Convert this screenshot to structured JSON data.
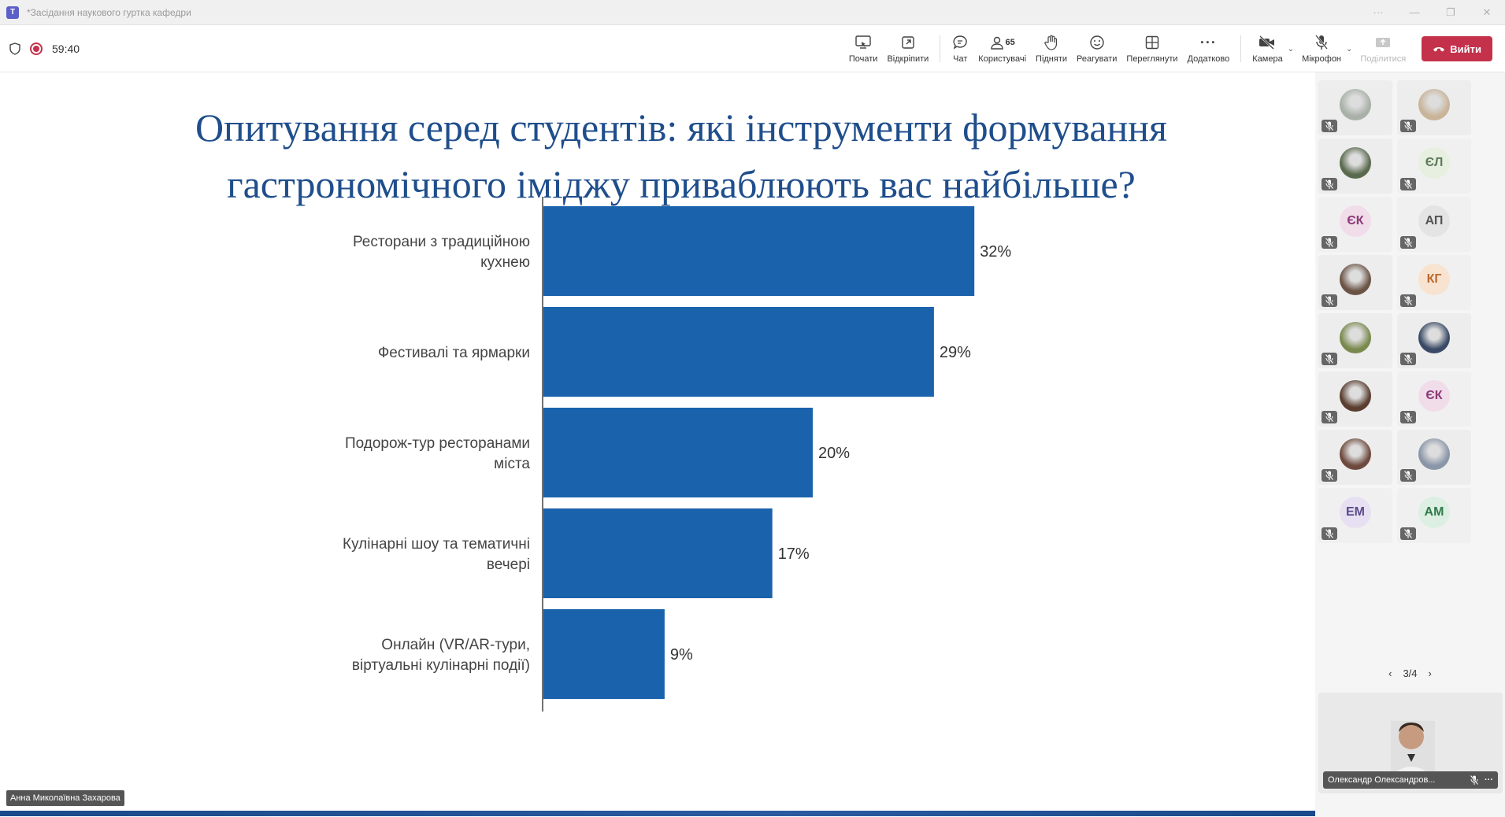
{
  "window": {
    "title": "*Засідання наукового гуртка кафедри",
    "app_icon": "teams-icon"
  },
  "toolbar": {
    "timer": "59:40",
    "buttons": {
      "share_label": "Почати",
      "popout_label": "Відкріпити",
      "chat_label": "Чат",
      "people_label": "Користувачі",
      "people_count": "65",
      "raise_label": "Підняти",
      "react_label": "Реагувати",
      "view_label": "Переглянути",
      "more_label": "Додатково",
      "camera_label": "Камера",
      "mic_label": "Мікрофон",
      "share_disabled_label": "Поділитися",
      "leave_label": "Вийти"
    },
    "colors": {
      "leave": "#c4314b"
    }
  },
  "slide": {
    "title_line1": "Опитування серед студентів: які інструменти формування",
    "title_line2": "гастрономічного іміджу приваблюють вас найбільше?",
    "presenter": "Анна Миколаївна Захарова"
  },
  "chart_data": {
    "type": "bar",
    "orientation": "horizontal",
    "categories": [
      [
        "Ресторани з традиційною",
        "кухнею"
      ],
      [
        "Фестивалі та ярмарки"
      ],
      [
        "Подорож-тур ресторанами",
        "міста"
      ],
      [
        "Кулінарні шоу та тематичні",
        "вечері"
      ],
      [
        "Онлайн (VR/AR-тури,",
        "віртуальні кулінарні події)"
      ]
    ],
    "values": [
      32,
      29,
      20,
      17,
      9
    ],
    "value_labels": [
      "32%",
      "29%",
      "20%",
      "17%",
      "9%"
    ],
    "xlim": [
      0,
      50
    ],
    "bar_color": "#1a63ac",
    "grid": false
  },
  "gallery": {
    "tiles": [
      {
        "initials": "",
        "type": "photo",
        "color": "#a8b0a8"
      },
      {
        "initials": "",
        "type": "photo",
        "color": "#c9b49a"
      },
      {
        "initials": "",
        "type": "photo",
        "color": "#5a6a4e"
      },
      {
        "initials": "ЄЛ",
        "type": "initials",
        "color": "#5e7a5a",
        "bg": "#e6efe0"
      },
      {
        "initials": "ЄК",
        "type": "initials",
        "color": "#8a3a78",
        "bg": "#f1dcea"
      },
      {
        "initials": "АП",
        "type": "initials",
        "color": "#555555",
        "bg": "#e4e4e4"
      },
      {
        "initials": "",
        "type": "photo",
        "color": "#6b5446"
      },
      {
        "initials": "КГ",
        "type": "initials",
        "color": "#b86a30",
        "bg": "#f7e3d0"
      },
      {
        "initials": "",
        "type": "photo",
        "color": "#7a8a4e"
      },
      {
        "initials": "",
        "type": "photo",
        "color": "#3a4a66"
      },
      {
        "initials": "",
        "type": "photo",
        "color": "#5a3e30"
      },
      {
        "initials": "ЄК",
        "type": "initials",
        "color": "#8a3a78",
        "bg": "#f1dcea"
      },
      {
        "initials": "",
        "type": "photo",
        "color": "#6e4a3e"
      },
      {
        "initials": "",
        "type": "photo",
        "color": "#8a96a8"
      },
      {
        "initials": "ЕМ",
        "type": "initials",
        "color": "#5b4a8a",
        "bg": "#e6e0f2"
      },
      {
        "initials": "АМ",
        "type": "initials",
        "color": "#2f7a4a",
        "bg": "#dcefe2"
      }
    ],
    "pager": "3/4",
    "speaker_name": "Олександр Олександров..."
  }
}
